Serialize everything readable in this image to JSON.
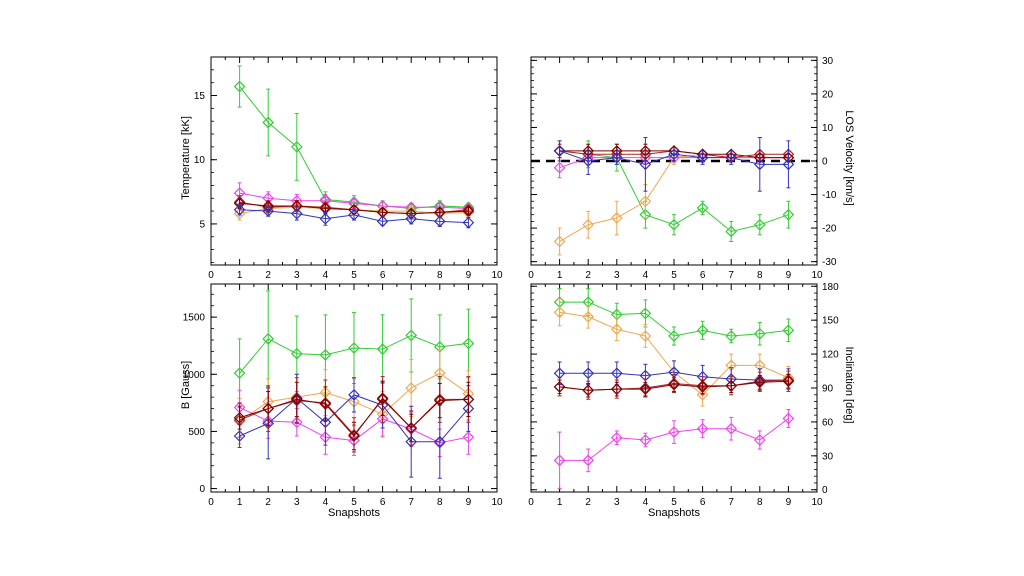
{
  "figure": {
    "panel_top_left": {
      "ylabel": "Temperature [kK]",
      "xlabel": ""
    },
    "panel_top_right": {
      "ylabel": "LOS Velocity [km/s]",
      "xlabel": ""
    },
    "panel_bottom_left": {
      "ylabel": "B [Gauss]",
      "xlabel": "Snapshots"
    },
    "panel_bottom_right": {
      "ylabel": "Inclination [deg]",
      "xlabel": "Snapshots"
    }
  },
  "chart_data": [
    {
      "id": "temperature",
      "type": "line",
      "title": "",
      "xlabel": "",
      "ylabel": "Temperature [kK]",
      "xlim": [
        0,
        10
      ],
      "ylim": [
        1.8,
        18
      ],
      "xticks": [
        0,
        1,
        2,
        3,
        4,
        5,
        6,
        7,
        8,
        9,
        10
      ],
      "yticks": [
        5,
        10,
        15
      ],
      "yaxis_side": "left",
      "marker": "diamond",
      "x": [
        1,
        2,
        3,
        4,
        5,
        6,
        7,
        8,
        9
      ],
      "series": [
        {
          "name": "green",
          "color": "#33cc33",
          "values": [
            15.7,
            12.9,
            11.0,
            6.9,
            6.7,
            6.4,
            6.2,
            6.4,
            6.3
          ],
          "err": [
            1.6,
            2.6,
            2.6,
            0.6,
            0.5,
            0.4,
            0.4,
            0.4,
            0.3
          ]
        },
        {
          "name": "magenta",
          "color": "#ee44ee",
          "values": [
            7.4,
            7.0,
            6.8,
            6.8,
            6.6,
            6.4,
            6.3,
            6.3,
            6.2
          ],
          "err": [
            0.8,
            0.5,
            0.5,
            0.5,
            0.4,
            0.3,
            0.3,
            0.3,
            0.3
          ]
        },
        {
          "name": "orange",
          "color": "#f0a850",
          "values": [
            5.8,
            6.2,
            6.3,
            6.2,
            6.1,
            6.0,
            6.0,
            5.8,
            5.9
          ],
          "err": [
            0.5,
            0.4,
            0.4,
            0.4,
            0.3,
            0.3,
            0.3,
            0.3,
            0.3
          ]
        },
        {
          "name": "red",
          "color": "#b22222",
          "values": [
            6.7,
            6.3,
            6.4,
            6.3,
            6.1,
            5.9,
            5.8,
            5.9,
            6.1
          ],
          "err": [
            0.5,
            0.4,
            0.4,
            0.4,
            0.3,
            0.3,
            0.3,
            0.3,
            0.3
          ]
        },
        {
          "name": "darkred",
          "color": "#800000",
          "values": [
            6.6,
            6.4,
            6.4,
            6.2,
            6.1,
            5.9,
            5.8,
            5.9,
            6.0
          ],
          "err": [
            0.4,
            0.4,
            0.4,
            0.4,
            0.3,
            0.3,
            0.3,
            0.3,
            0.3
          ]
        },
        {
          "name": "blue",
          "color": "#3333bb",
          "values": [
            6.1,
            6.0,
            5.8,
            5.4,
            5.7,
            5.2,
            5.4,
            5.2,
            5.1
          ],
          "err": [
            0.4,
            0.4,
            0.5,
            0.5,
            0.4,
            0.3,
            0.4,
            0.4,
            0.4
          ]
        }
      ]
    },
    {
      "id": "los_velocity",
      "type": "line",
      "title": "",
      "xlabel": "",
      "ylabel": "LOS Velocity [km/s]",
      "xlim": [
        0,
        10
      ],
      "ylim": [
        -31,
        31
      ],
      "xticks": [
        0,
        1,
        2,
        3,
        4,
        5,
        6,
        7,
        8,
        9,
        10
      ],
      "yticks": [
        -30,
        -20,
        -10,
        0,
        10,
        20,
        30
      ],
      "yaxis_side": "right",
      "marker": "diamond",
      "reference_line": {
        "y": 0,
        "style": "dashed"
      },
      "x": [
        1,
        2,
        3,
        4,
        5,
        6,
        7,
        8,
        9
      ],
      "series": [
        {
          "name": "green",
          "color": "#33cc33",
          "values": [
            3,
            2,
            1,
            -16,
            -19,
            -14,
            -21,
            -19,
            -16
          ],
          "err": [
            3,
            4,
            4,
            4,
            3,
            2,
            3,
            3,
            4
          ]
        },
        {
          "name": "orange",
          "color": "#f0a850",
          "values": [
            -24,
            -19,
            -17,
            -12,
            1,
            2,
            1,
            1,
            1
          ],
          "err": [
            4,
            4,
            5,
            5,
            2,
            1,
            1,
            1,
            1
          ]
        },
        {
          "name": "magenta",
          "color": "#ee44ee",
          "values": [
            -2,
            1,
            1,
            1,
            1,
            1,
            1,
            1,
            1
          ],
          "err": [
            3,
            2,
            2,
            2,
            1,
            1,
            1,
            1,
            1
          ]
        },
        {
          "name": "red",
          "color": "#b22222",
          "values": [
            3,
            2,
            2,
            2,
            3,
            2,
            1,
            2,
            2
          ],
          "err": [
            2,
            2,
            2,
            2,
            1,
            1,
            1,
            1,
            1
          ]
        },
        {
          "name": "darkred",
          "color": "#800000",
          "values": [
            3,
            3,
            3,
            3,
            3,
            2,
            2,
            1,
            1
          ],
          "err": [
            1,
            2,
            2,
            2,
            1,
            1,
            1,
            1,
            1
          ]
        },
        {
          "name": "blue",
          "color": "#3333bb",
          "values": [
            3,
            0,
            1,
            -1,
            2,
            1,
            1,
            -1,
            -1
          ],
          "err": [
            3,
            4,
            2,
            8,
            2,
            2,
            2,
            8,
            7
          ]
        }
      ]
    },
    {
      "id": "magnetic_field",
      "type": "line",
      "title": "",
      "xlabel": "Snapshots",
      "ylabel": "B [Gauss]",
      "xlim": [
        0,
        10
      ],
      "ylim": [
        -30,
        1790
      ],
      "xticks": [
        0,
        1,
        2,
        3,
        4,
        5,
        6,
        7,
        8,
        9,
        10
      ],
      "yticks": [
        0,
        500,
        1000,
        1500
      ],
      "yaxis_side": "left",
      "marker": "diamond",
      "x": [
        1,
        2,
        3,
        4,
        5,
        6,
        7,
        8,
        9
      ],
      "series": [
        {
          "name": "green",
          "color": "#33cc33",
          "values": [
            1010,
            1310,
            1180,
            1170,
            1230,
            1220,
            1340,
            1240,
            1270
          ],
          "err": [
            300,
            420,
            330,
            350,
            310,
            300,
            320,
            280,
            300
          ]
        },
        {
          "name": "orange",
          "color": "#f0a850",
          "values": [
            590,
            760,
            800,
            840,
            760,
            650,
            880,
            1010,
            830
          ],
          "err": [
            200,
            200,
            200,
            200,
            200,
            200,
            250,
            200,
            200
          ]
        },
        {
          "name": "magenta",
          "color": "#ee44ee",
          "values": [
            710,
            590,
            580,
            450,
            420,
            610,
            520,
            400,
            450
          ],
          "err": [
            150,
            150,
            120,
            150,
            130,
            150,
            150,
            120,
            150
          ]
        },
        {
          "name": "blue",
          "color": "#3333bb",
          "values": [
            460,
            570,
            790,
            580,
            820,
            730,
            410,
            410,
            700
          ],
          "err": [
            100,
            310,
            210,
            200,
            150,
            200,
            310,
            320,
            200
          ]
        },
        {
          "name": "red",
          "color": "#b22222",
          "values": [
            600,
            700,
            770,
            750,
            470,
            780,
            530,
            780,
            780
          ],
          "err": [
            150,
            200,
            200,
            200,
            150,
            200,
            150,
            200,
            200
          ]
        },
        {
          "name": "darkred",
          "color": "#800000",
          "values": [
            620,
            700,
            780,
            740,
            460,
            790,
            530,
            770,
            780
          ],
          "err": [
            100,
            150,
            150,
            150,
            120,
            150,
            120,
            150,
            150
          ]
        }
      ]
    },
    {
      "id": "inclination",
      "type": "line",
      "title": "",
      "xlabel": "Snapshots",
      "ylabel": "Inclination [deg]",
      "xlim": [
        0,
        10
      ],
      "ylim": [
        -2,
        182
      ],
      "xticks": [
        0,
        1,
        2,
        3,
        4,
        5,
        6,
        7,
        8,
        9,
        10
      ],
      "yticks": [
        0,
        30,
        60,
        90,
        120,
        150,
        180
      ],
      "yaxis_side": "right",
      "marker": "diamond",
      "x": [
        1,
        2,
        3,
        4,
        5,
        6,
        7,
        8,
        9
      ],
      "series": [
        {
          "name": "green",
          "color": "#33cc33",
          "values": [
            166,
            166,
            155,
            156,
            136,
            141,
            136,
            138,
            141
          ],
          "err": [
            12,
            12,
            10,
            12,
            8,
            8,
            6,
            10,
            10
          ]
        },
        {
          "name": "orange",
          "color": "#f0a850",
          "values": [
            157,
            153,
            142,
            136,
            104,
            84,
            110,
            110,
            99
          ],
          "err": [
            12,
            10,
            10,
            10,
            10,
            10,
            10,
            10,
            10
          ]
        },
        {
          "name": "blue",
          "color": "#3333bb",
          "values": [
            103,
            103,
            103,
            101,
            104,
            100,
            98,
            97,
            97
          ],
          "err": [
            10,
            10,
            10,
            10,
            10,
            10,
            10,
            10,
            10
          ]
        },
        {
          "name": "red",
          "color": "#b22222",
          "values": [
            91,
            88,
            89,
            90,
            94,
            92,
            92,
            96,
            97
          ],
          "err": [
            8,
            8,
            8,
            8,
            8,
            8,
            8,
            8,
            8
          ]
        },
        {
          "name": "darkred",
          "color": "#800000",
          "values": [
            91,
            88,
            89,
            89,
            93,
            91,
            92,
            95,
            96
          ],
          "err": [
            6,
            6,
            6,
            6,
            6,
            6,
            6,
            6,
            6
          ]
        },
        {
          "name": "magenta",
          "color": "#ee44ee",
          "values": [
            26,
            26,
            46,
            44,
            51,
            54,
            54,
            44,
            63
          ],
          "err": [
            25,
            10,
            6,
            6,
            10,
            8,
            10,
            8,
            8
          ]
        }
      ]
    }
  ]
}
